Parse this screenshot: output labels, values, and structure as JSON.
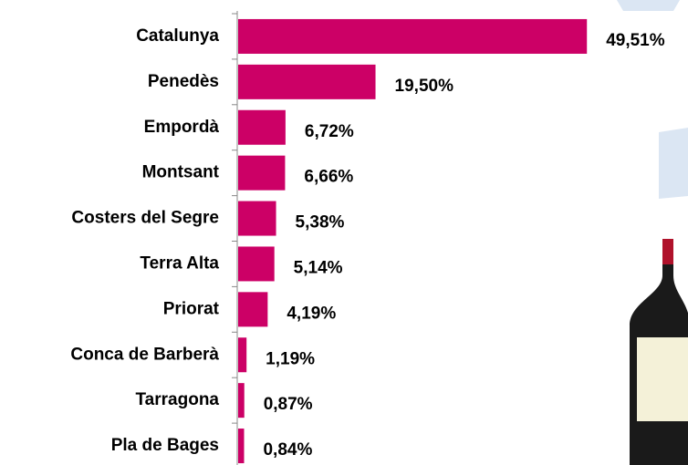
{
  "chart_data": {
    "type": "bar",
    "orientation": "horizontal",
    "categories": [
      "Catalunya",
      "Penedès",
      "Empordà",
      "Montsant",
      "Costers del Segre",
      "Terra Alta",
      "Priorat",
      "Conca de Barberà",
      "Tarragona",
      "Pla de Bages"
    ],
    "values": [
      49.51,
      19.5,
      6.72,
      6.66,
      5.38,
      5.14,
      4.19,
      1.19,
      0.87,
      0.84
    ],
    "value_labels": [
      "49,51%",
      "19,50%",
      "6,72%",
      "6,66%",
      "5,38%",
      "5,14%",
      "4,19%",
      "1,19%",
      "0,87%",
      "0,84%"
    ],
    "color": "#cc0066"
  }
}
